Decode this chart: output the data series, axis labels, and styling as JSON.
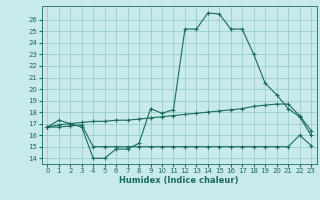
{
  "xlabel": "Humidex (Indice chaleur)",
  "background_color": "#c8eaea",
  "grid_color": "#7fbfbf",
  "line_color": "#1a6b5a",
  "xlim": [
    -0.5,
    23.5
  ],
  "ylim": [
    13.5,
    27.2
  ],
  "xticks": [
    0,
    1,
    2,
    3,
    4,
    5,
    6,
    7,
    8,
    9,
    10,
    11,
    12,
    13,
    14,
    15,
    16,
    17,
    18,
    19,
    20,
    21,
    22,
    23
  ],
  "yticks": [
    14,
    15,
    16,
    17,
    18,
    19,
    20,
    21,
    22,
    23,
    24,
    25,
    26
  ],
  "curve1_x": [
    0,
    1,
    2,
    3,
    4,
    5,
    6,
    7,
    8,
    9,
    10,
    11,
    12,
    13,
    14,
    15,
    16,
    17,
    18,
    19,
    20,
    21,
    22,
    23
  ],
  "curve1_y": [
    16.7,
    17.3,
    17.0,
    16.7,
    14.0,
    14.0,
    14.8,
    14.8,
    15.3,
    18.3,
    17.9,
    18.2,
    25.2,
    25.2,
    26.6,
    26.5,
    25.2,
    25.2,
    23.0,
    20.5,
    19.5,
    18.3,
    17.6,
    16.0
  ],
  "curve2_x": [
    0,
    1,
    2,
    3,
    4,
    5,
    6,
    7,
    8,
    9,
    10,
    11,
    12,
    13,
    14,
    15,
    16,
    17,
    18,
    19,
    20,
    21,
    22,
    23
  ],
  "curve2_y": [
    16.7,
    16.7,
    16.8,
    16.9,
    15.0,
    15.0,
    15.0,
    15.0,
    15.0,
    15.0,
    15.0,
    15.0,
    15.0,
    15.0,
    15.0,
    15.0,
    15.0,
    15.0,
    15.0,
    15.0,
    15.0,
    15.0,
    16.0,
    15.1
  ],
  "curve3_x": [
    0,
    1,
    2,
    3,
    4,
    5,
    6,
    7,
    8,
    9,
    10,
    11,
    12,
    13,
    14,
    15,
    16,
    17,
    18,
    19,
    20,
    21,
    22,
    23
  ],
  "curve3_y": [
    16.7,
    16.9,
    17.0,
    17.1,
    17.2,
    17.2,
    17.3,
    17.3,
    17.4,
    17.5,
    17.6,
    17.7,
    17.8,
    17.9,
    18.0,
    18.1,
    18.2,
    18.3,
    18.5,
    18.6,
    18.7,
    18.7,
    17.7,
    16.4
  ],
  "tick_fontsize": 5.0,
  "xlabel_fontsize": 6.0
}
